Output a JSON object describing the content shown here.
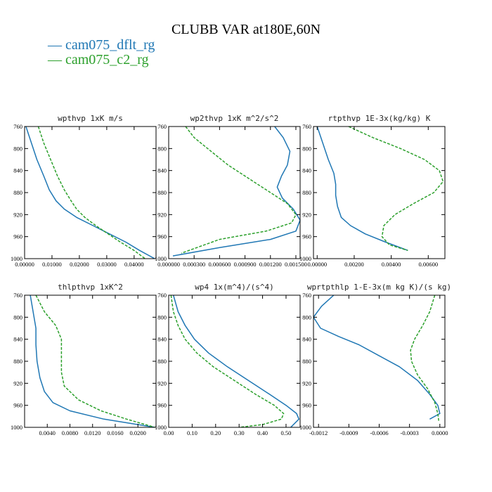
{
  "figure": {
    "title": "CLUBB VAR at180E,60N",
    "legend": [
      {
        "label": "cam075_dflt_rg",
        "color": "#1f77b4",
        "glyph": "—"
      },
      {
        "label": "cam075_c2_rg",
        "color": "#2ca02c",
        "glyph": "—"
      }
    ]
  },
  "chart_data": [
    {
      "type": "line",
      "title": "wpthvp  1xK m/s",
      "xlim": [
        0,
        0.048
      ],
      "ylim": [
        760,
        1000
      ],
      "xticks": [
        0,
        0.01,
        0.02,
        0.03,
        0.04
      ],
      "xtick_labels": [
        "0.00000",
        "0.01000",
        "0.02000",
        "0.03000",
        "0.04000"
      ],
      "yticks": [
        760,
        800,
        840,
        880,
        920,
        960,
        1000
      ],
      "ytick_labels": [
        "760",
        "800",
        "840",
        "880",
        "920",
        "960",
        "1000"
      ],
      "series": [
        {
          "name": "cam075_dflt_rg",
          "color": "#1f77b4",
          "dash": "",
          "x": [
            0.0005,
            0.0025,
            0.0045,
            0.007,
            0.009,
            0.0115,
            0.0145,
            0.019,
            0.025,
            0.031,
            0.037,
            0.042,
            0.0475
          ],
          "y": [
            760,
            790,
            820,
            850,
            875,
            895,
            910,
            925,
            940,
            955,
            970,
            985,
            1000
          ]
        },
        {
          "name": "cam075_c2_rg",
          "color": "#2ca02c",
          "dash": "4,2",
          "x": [
            0.005,
            0.007,
            0.0095,
            0.012,
            0.0145,
            0.017,
            0.019,
            0.022,
            0.026,
            0.0305,
            0.035,
            0.04,
            0.044
          ],
          "y": [
            760,
            790,
            820,
            850,
            875,
            895,
            910,
            925,
            940,
            955,
            970,
            985,
            1000
          ]
        }
      ]
    },
    {
      "type": "line",
      "title": "wp2thvp  1xK m^2/s^2",
      "xlim": [
        0,
        0.00155
      ],
      "ylim": [
        760,
        1000
      ],
      "xticks": [
        0,
        0.0003,
        0.0006,
        0.0009,
        0.0012,
        0.0015
      ],
      "xtick_labels": [
        "0.000000",
        "0.000300",
        "0.000600",
        "0.000900",
        "0.001200",
        "0.001500"
      ],
      "yticks": [
        760,
        800,
        840,
        880,
        920,
        960,
        1000
      ],
      "ytick_labels": [
        "760",
        "800",
        "840",
        "880",
        "920",
        "960",
        "1000"
      ],
      "series": [
        {
          "name": "cam075_dflt_rg",
          "color": "#1f77b4",
          "dash": "",
          "x": [
            0.00125,
            0.00135,
            0.00143,
            0.0014,
            0.00133,
            0.00128,
            0.00134,
            0.00147,
            0.00155,
            0.0015,
            0.0012,
            0.0006,
            5e-05
          ],
          "y": [
            760,
            780,
            805,
            830,
            850,
            870,
            890,
            910,
            930,
            950,
            965,
            980,
            995
          ]
        },
        {
          "name": "cam075_c2_rg",
          "color": "#2ca02c",
          "dash": "4,2",
          "x": [
            0.0002,
            0.0003,
            0.0005,
            0.0007,
            0.00095,
            0.0012,
            0.0014,
            0.0015,
            0.00145,
            0.00115,
            0.0006,
            0.00015
          ],
          "y": [
            760,
            780,
            805,
            830,
            855,
            880,
            900,
            920,
            935,
            950,
            965,
            990
          ]
        }
      ]
    },
    {
      "type": "line",
      "title": "rtpthvp  1E-3x(kg/kg) K",
      "xlim": [
        -0.0002,
        0.0069
      ],
      "ylim": [
        760,
        1000
      ],
      "xticks": [
        0,
        0.002,
        0.004,
        0.006
      ],
      "xtick_labels": [
        "0.00000",
        "0.00200",
        "0.00400",
        "0.00600"
      ],
      "yticks": [
        760,
        800,
        840,
        880,
        920,
        960,
        1000
      ],
      "ytick_labels": [
        "760",
        "800",
        "840",
        "880",
        "920",
        "960",
        "1000"
      ],
      "series": [
        {
          "name": "cam075_dflt_rg",
          "color": "#1f77b4",
          "dash": "",
          "x": [
            0.0,
            0.0003,
            0.0006,
            0.0009,
            0.001,
            0.001,
            0.0011,
            0.0013,
            0.0018,
            0.0026,
            0.0037,
            0.0049
          ],
          "y": [
            760,
            790,
            820,
            845,
            865,
            885,
            905,
            925,
            940,
            955,
            970,
            985
          ]
        },
        {
          "name": "cam075_c2_rg",
          "color": "#2ca02c",
          "dash": "4,2",
          "x": [
            0.0017,
            0.003,
            0.0045,
            0.0058,
            0.0066,
            0.0068,
            0.0063,
            0.0052,
            0.0042,
            0.0036,
            0.0035,
            0.0039,
            0.0049
          ],
          "y": [
            760,
            780,
            800,
            820,
            840,
            860,
            880,
            900,
            920,
            940,
            960,
            975,
            985
          ]
        }
      ]
    },
    {
      "type": "line",
      "title": "thlpthvp  1xK^2",
      "xlim": [
        0,
        0.0232
      ],
      "ylim": [
        760,
        1000
      ],
      "xticks": [
        0.004,
        0.008,
        0.012,
        0.016,
        0.02
      ],
      "xtick_labels": [
        "0.0040",
        "0.0080",
        "0.0120",
        "0.0160",
        "0.0200"
      ],
      "yticks": [
        760,
        800,
        840,
        880,
        920,
        960,
        1000
      ],
      "ytick_labels": [
        "760",
        "800",
        "840",
        "880",
        "920",
        "960",
        "1000"
      ],
      "series": [
        {
          "name": "cam075_dflt_rg",
          "color": "#1f77b4",
          "dash": "",
          "x": [
            0.001,
            0.0015,
            0.002,
            0.002,
            0.0022,
            0.0027,
            0.0035,
            0.005,
            0.008,
            0.014,
            0.023
          ],
          "y": [
            760,
            790,
            820,
            850,
            880,
            910,
            935,
            955,
            970,
            985,
            1000
          ]
        },
        {
          "name": "cam075_c2_rg",
          "color": "#2ca02c",
          "dash": "4,2",
          "x": [
            0.002,
            0.0035,
            0.0055,
            0.0065,
            0.0065,
            0.0065,
            0.007,
            0.0095,
            0.0135,
            0.018,
            0.023
          ],
          "y": [
            760,
            790,
            815,
            840,
            870,
            900,
            925,
            950,
            970,
            985,
            1000
          ]
        }
      ]
    },
    {
      "type": "line",
      "title": "wp4  1x(m^4)/(s^4)",
      "xlim": [
        0,
        0.56
      ],
      "ylim": [
        760,
        1000
      ],
      "xticks": [
        0,
        0.1,
        0.2,
        0.3,
        0.4,
        0.5
      ],
      "xtick_labels": [
        "0.00",
        "0.10",
        "0.20",
        "0.30",
        "0.40",
        "0.50"
      ],
      "yticks": [
        760,
        800,
        840,
        880,
        920,
        960,
        1000
      ],
      "ytick_labels": [
        "760",
        "800",
        "840",
        "880",
        "920",
        "960",
        "1000"
      ],
      "series": [
        {
          "name": "cam075_dflt_rg",
          "color": "#1f77b4",
          "dash": "",
          "x": [
            0.02,
            0.04,
            0.07,
            0.11,
            0.17,
            0.25,
            0.34,
            0.43,
            0.5,
            0.545,
            0.555,
            0.52
          ],
          "y": [
            760,
            790,
            815,
            840,
            865,
            890,
            915,
            940,
            960,
            975,
            985,
            1000
          ]
        },
        {
          "name": "cam075_c2_rg",
          "color": "#2ca02c",
          "dash": "4,2",
          "x": [
            0.01,
            0.02,
            0.04,
            0.07,
            0.12,
            0.19,
            0.28,
            0.37,
            0.45,
            0.49,
            0.48,
            0.4,
            0.3
          ],
          "y": [
            760,
            790,
            815,
            840,
            865,
            890,
            915,
            940,
            960,
            975,
            985,
            995,
            1000
          ]
        }
      ]
    },
    {
      "type": "line",
      "title": "wprtpthlp  1-E-3x(m kg K)/(s kg)",
      "xlim": [
        -0.00125,
        5e-05
      ],
      "ylim": [
        760,
        1000
      ],
      "xticks": [
        -0.0012,
        -0.0009,
        -0.0006,
        -0.0003,
        0
      ],
      "xtick_labels": [
        "-0.0012",
        "-0.0009",
        "-0.0006",
        "-0.0003",
        "0.0000"
      ],
      "yticks": [
        760,
        800,
        840,
        880,
        920,
        960,
        1000
      ],
      "ytick_labels": [
        "760",
        "800",
        "840",
        "880",
        "920",
        "960",
        "1000"
      ],
      "series": [
        {
          "name": "cam075_dflt_rg",
          "color": "#1f77b4",
          "dash": "",
          "x": [
            -0.00105,
            -0.00117,
            -0.00125,
            -0.00118,
            -0.001,
            -0.0008,
            -0.0006,
            -0.0004,
            -0.00022,
            -0.0001,
            -2e-05,
            0.0,
            -0.0001
          ],
          "y": [
            760,
            780,
            800,
            820,
            835,
            850,
            870,
            890,
            915,
            940,
            960,
            975,
            985
          ]
        },
        {
          "name": "cam075_c2_rg",
          "color": "#2ca02c",
          "dash": "4,2",
          "x": [
            -5e-05,
            -0.0001,
            -0.00017,
            -0.00025,
            -0.00029,
            -0.00028,
            -0.00022,
            -0.00012,
            -5e-05,
            -2e-05,
            -1e-05
          ],
          "y": [
            760,
            790,
            815,
            840,
            860,
            880,
            905,
            930,
            955,
            975,
            990
          ]
        }
      ]
    }
  ]
}
